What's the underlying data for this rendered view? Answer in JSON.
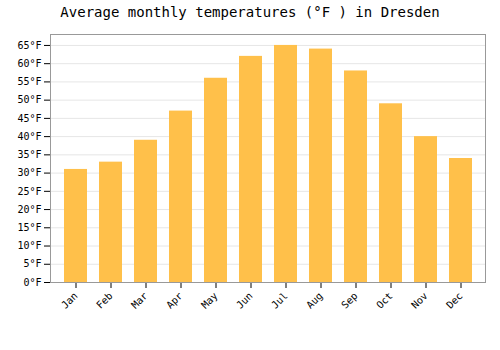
{
  "chart_data": {
    "type": "bar",
    "title": "Average monthly temperatures (°F ) in Dresden",
    "categories": [
      "Jan",
      "Feb",
      "Mar",
      "Apr",
      "May",
      "Jun",
      "Jul",
      "Aug",
      "Sep",
      "Oct",
      "Nov",
      "Dec"
    ],
    "values": [
      31,
      33,
      39,
      47,
      56,
      62,
      65,
      64,
      58,
      49,
      40,
      34
    ],
    "color": "#FFC04A",
    "ylim": [
      0,
      68
    ],
    "yticks": [
      {
        "value": 0,
        "label": "0°F"
      },
      {
        "value": 5,
        "label": "5°F"
      },
      {
        "value": 10,
        "label": "10°F"
      },
      {
        "value": 15,
        "label": "15°F"
      },
      {
        "value": 20,
        "label": "20°F"
      },
      {
        "value": 25,
        "label": "25°F"
      },
      {
        "value": 30,
        "label": "30°F"
      },
      {
        "value": 35,
        "label": "35°F"
      },
      {
        "value": 40,
        "label": "40°F"
      },
      {
        "value": 45,
        "label": "45°F"
      },
      {
        "value": 50,
        "label": "50°F"
      },
      {
        "value": 55,
        "label": "55°F"
      },
      {
        "value": 60,
        "label": "60°F"
      },
      {
        "value": 65,
        "label": "65°F"
      }
    ],
    "grid": true
  }
}
